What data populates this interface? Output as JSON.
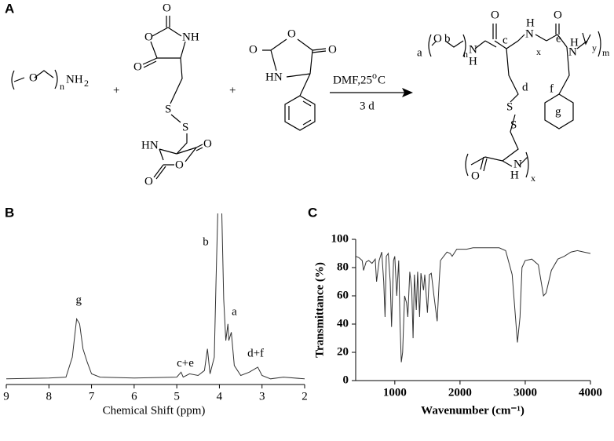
{
  "scheme": {
    "panel_label": "A",
    "labels": [
      "O",
      "n",
      "NH",
      "2",
      "+",
      "O",
      "O",
      "NH",
      "O",
      "S",
      "S",
      "HN",
      "O",
      "O",
      "O",
      "+",
      "O",
      "O",
      "O",
      "HN",
      "DMF,25",
      "o",
      "C",
      "3 d",
      "a",
      "O",
      "b",
      "n",
      "N",
      "H",
      "O",
      "c",
      "H",
      "N",
      "x",
      "O",
      "e",
      "H",
      "N",
      "y",
      "m",
      "d",
      "f",
      "S",
      "S",
      "g",
      "O",
      "H",
      "N",
      "x"
    ]
  },
  "chart_data": [
    {
      "type": "line",
      "panel_label": "B",
      "xlabel": "Chemical Shift (ppm)",
      "color": "#333333",
      "xlim": [
        9,
        2
      ],
      "xticks": [
        9,
        8,
        7,
        6,
        5,
        4,
        3,
        2
      ],
      "ylim": [
        0,
        100
      ],
      "x": [
        9,
        8,
        7.6,
        7.45,
        7.35,
        7.28,
        7.2,
        7.1,
        7.0,
        6.8,
        6,
        5,
        4.9,
        4.85,
        4.7,
        4.5,
        4.35,
        4.28,
        4.22,
        4.12,
        4.08,
        4.03,
        3.95,
        3.9,
        3.85,
        3.8,
        3.78,
        3.72,
        3.65,
        3.5,
        3.3,
        3.1,
        3.0,
        2.8,
        2.5,
        2
      ],
      "values": [
        2,
        2.5,
        3,
        15,
        38,
        35,
        20,
        12,
        5,
        3,
        2.5,
        3,
        6,
        3,
        5,
        4,
        7,
        20,
        5,
        15,
        60,
        110,
        110,
        50,
        25,
        35,
        25,
        30,
        10,
        4,
        6,
        9,
        4,
        2,
        3,
        2
      ],
      "annotations": [
        {
          "text": "g",
          "x": 7.3,
          "y": 49
        },
        {
          "text": "b",
          "x": 4.32,
          "y": 84
        },
        {
          "text": "a",
          "x": 3.65,
          "y": 42
        },
        {
          "text": "c+e",
          "x": 4.8,
          "y": 11
        },
        {
          "text": "d+f",
          "x": 3.15,
          "y": 17
        }
      ]
    },
    {
      "type": "line",
      "panel_label": "C",
      "xlabel": "Wavenumber (cm⁻¹)",
      "ylabel": "Transmittance (%)",
      "color": "#333333",
      "xlim": [
        400,
        4000
      ],
      "xticks": [
        1000,
        2000,
        3000,
        4000
      ],
      "ylim": [
        0,
        100
      ],
      "yticks": [
        0,
        20,
        40,
        60,
        80,
        100
      ],
      "x": [
        400,
        450,
        500,
        520,
        560,
        600,
        650,
        700,
        720,
        760,
        800,
        830,
        850,
        870,
        900,
        930,
        950,
        980,
        1000,
        1030,
        1060,
        1080,
        1100,
        1120,
        1150,
        1180,
        1200,
        1230,
        1260,
        1280,
        1300,
        1330,
        1350,
        1380,
        1400,
        1440,
        1460,
        1500,
        1530,
        1560,
        1600,
        1650,
        1680,
        1700,
        1750,
        1800,
        1850,
        1880,
        1950,
        2000,
        2100,
        2200,
        2400,
        2600,
        2700,
        2800,
        2850,
        2880,
        2920,
        2950,
        3000,
        3100,
        3200,
        3280,
        3320,
        3400,
        3500,
        3600,
        3700,
        3800,
        3900,
        4000
      ],
      "values": [
        88,
        87,
        85,
        78,
        84,
        85,
        83,
        86,
        70,
        85,
        91,
        70,
        45,
        88,
        90,
        70,
        38,
        85,
        88,
        60,
        85,
        40,
        13,
        20,
        60,
        55,
        45,
        77,
        65,
        30,
        75,
        50,
        77,
        45,
        76,
        64,
        75,
        48,
        75,
        76,
        60,
        42,
        70,
        85,
        88,
        91,
        90,
        88,
        93,
        93,
        93,
        94,
        94,
        94,
        92,
        75,
        45,
        27,
        45,
        80,
        85,
        86,
        82,
        60,
        62,
        78,
        86,
        88,
        91,
        92,
        91,
        90
      ]
    }
  ]
}
